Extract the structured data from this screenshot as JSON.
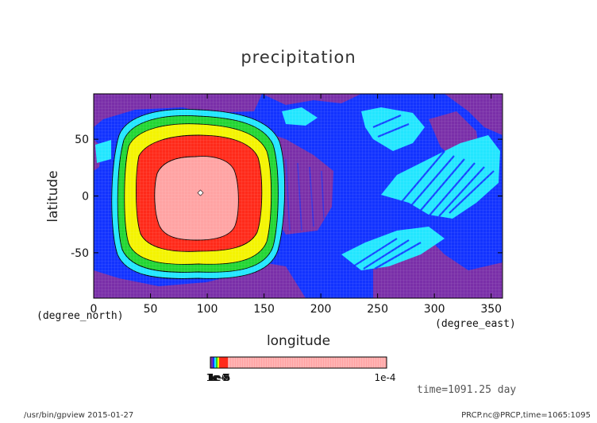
{
  "chart_data": {
    "type": "heatmap",
    "title": "precipitation",
    "xlabel": "longitude",
    "ylabel": "latitude",
    "x_unit": "(degree_east)",
    "y_unit": "(degree_north)",
    "xlim": [
      0,
      360
    ],
    "ylim": [
      -90,
      90
    ],
    "x_ticks": [
      0,
      50,
      100,
      150,
      200,
      250,
      300,
      350
    ],
    "y_ticks": [
      -50,
      0,
      50
    ],
    "colorbar": {
      "min_labels": [
        "1e-6",
        "1e-7",
        "1e-8",
        "1e-9",
        "1e-5"
      ],
      "max_label": "1e-4"
    },
    "levels": [
      {
        "name": "purple",
        "color": "#7a2fa8"
      },
      {
        "name": "blue",
        "color": "#1233ff"
      },
      {
        "name": "cyan",
        "color": "#22e6ff"
      },
      {
        "name": "green",
        "color": "#22d633"
      },
      {
        "name": "yellow",
        "color": "#f4f400"
      },
      {
        "name": "red",
        "color": "#ff2a1a"
      },
      {
        "name": "pink",
        "color": "#ffa3a3"
      }
    ],
    "annotation": "time=1091.25 day"
  },
  "footer": {
    "left": "/usr/bin/gpview  2015-01-27",
    "right": "PRCP.nc@PRCP,time=1065:1095"
  }
}
